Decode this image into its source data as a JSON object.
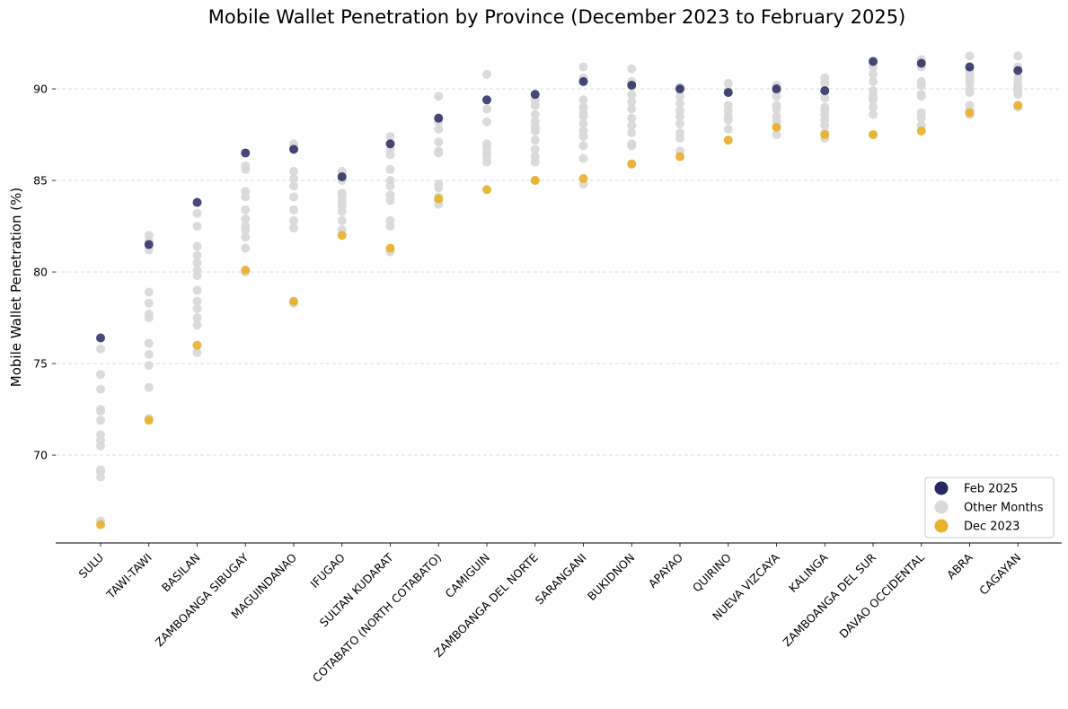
{
  "chart_data": {
    "type": "scatter",
    "title": "Mobile Wallet Penetration by Province (December 2023 to February 2025)",
    "xlabel": "",
    "ylabel": "Mobile Wallet Penetration (%)",
    "ylim": [
      65.2,
      92.6
    ],
    "yticks": [
      "70",
      "75",
      "80",
      "85",
      "90"
    ],
    "grid": "horizontal dashed",
    "legend_position": "lower right",
    "colors": {
      "feb_2025": "#26295f",
      "other_months": "#d9d9d9",
      "dec_2023": "#e9b22c"
    },
    "categories": [
      "SULU",
      "TAWI-TAWI",
      "BASILAN",
      "ZAMBOANGA SIBUGAY",
      "MAGUINDANAO",
      "IFUGAO",
      "SULTAN KUDARAT",
      "COTABATO (NORTH COTABATO)",
      "CAMIGUIN",
      "ZAMBOANGA DEL NORTE",
      "SARANGANI",
      "BUKIDNON",
      "APAYAO",
      "QUIRINO",
      "NUEVA VIZCAYA",
      "KALINGA",
      "ZAMBOANGA DEL SUR",
      "DAVAO OCCIDENTAL",
      "ABRA",
      "CAGAYAN"
    ],
    "series": [
      {
        "name": "Feb 2025",
        "values": [
          76.4,
          81.5,
          83.8,
          86.5,
          86.7,
          85.2,
          87.0,
          88.4,
          89.4,
          89.7,
          90.4,
          90.2,
          90.0,
          89.8,
          90.0,
          89.9,
          91.5,
          91.4,
          91.2,
          91.0
        ]
      },
      {
        "name": "Other Months",
        "values": [
          [
            75.8,
            74.4,
            73.6,
            72.5,
            72.4,
            71.9,
            71.1,
            70.8,
            70.5,
            69.2,
            69.1,
            68.8,
            66.4
          ],
          [
            82.0,
            81.7,
            81.2,
            78.9,
            78.3,
            77.7,
            77.5,
            76.1,
            75.5,
            74.9,
            73.7,
            72.0
          ],
          [
            83.2,
            82.5,
            81.4,
            80.9,
            80.5,
            80.1,
            79.8,
            79.0,
            78.4,
            78.0,
            77.5,
            77.1,
            75.6
          ],
          [
            85.8,
            85.6,
            84.4,
            84.1,
            83.4,
            82.9,
            82.5,
            82.3,
            81.9,
            81.3,
            80.0
          ],
          [
            87.0,
            86.8,
            85.5,
            85.1,
            84.7,
            84.1,
            83.4,
            82.8,
            82.4,
            78.3
          ],
          [
            85.5,
            85.0,
            84.3,
            84.1,
            83.8,
            83.6,
            83.3,
            82.8,
            82.3
          ],
          [
            87.4,
            86.7,
            86.4,
            85.6,
            85.0,
            84.7,
            84.2,
            83.9,
            82.8,
            82.5,
            81.1
          ],
          [
            89.6,
            88.2,
            87.8,
            87.1,
            86.6,
            86.5,
            84.8,
            84.6,
            84.1,
            83.9,
            83.7
          ],
          [
            90.8,
            88.9,
            88.2,
            87.0,
            86.8,
            86.5,
            86.3,
            86.0
          ],
          [
            89.4,
            89.1,
            88.6,
            88.2,
            87.9,
            87.7,
            87.2,
            86.7,
            86.3,
            86.0,
            85.0
          ],
          [
            91.2,
            90.6,
            89.4,
            89.0,
            88.7,
            88.5,
            88.1,
            87.7,
            87.4,
            86.9,
            86.2,
            84.8
          ],
          [
            91.1,
            90.4,
            89.7,
            89.3,
            88.9,
            88.4,
            88.0,
            87.6,
            87.0,
            86.9,
            85.9
          ],
          [
            90.1,
            89.6,
            89.2,
            88.8,
            88.5,
            88.1,
            87.6,
            87.3,
            86.6
          ],
          [
            90.3,
            89.9,
            89.1,
            88.8,
            88.5,
            88.3,
            87.8,
            87.2
          ],
          [
            90.2,
            89.9,
            89.6,
            89.1,
            88.9,
            88.5,
            88.2,
            87.9,
            87.5
          ],
          [
            90.6,
            90.3,
            89.5,
            89.0,
            88.8,
            88.6,
            88.3,
            88.0,
            87.6,
            87.3
          ],
          [
            91.2,
            90.8,
            90.4,
            89.9,
            89.6,
            89.4,
            89.0,
            88.6,
            87.5
          ],
          [
            91.6,
            91.2,
            90.4,
            90.2,
            89.7,
            89.6,
            88.7,
            88.4,
            88.0
          ],
          [
            91.8,
            91.0,
            90.8,
            90.5,
            90.3,
            90.0,
            89.8,
            89.1,
            88.8,
            88.6
          ],
          [
            91.8,
            91.2,
            90.6,
            90.3,
            90.1,
            89.9,
            89.7,
            89.0
          ]
        ]
      },
      {
        "name": "Dec 2023",
        "values": [
          66.2,
          71.9,
          76.0,
          80.1,
          78.4,
          82.0,
          81.3,
          84.0,
          84.5,
          85.0,
          85.1,
          85.9,
          86.3,
          87.2,
          87.9,
          87.5,
          87.5,
          87.7,
          88.7,
          89.1
        ]
      }
    ]
  },
  "legend": {
    "items": [
      {
        "label": "Feb 2025",
        "color": "#26295f"
      },
      {
        "label": "Other Months",
        "color": "#d9d9d9"
      },
      {
        "label": "Dec 2023",
        "color": "#e9b22c"
      }
    ]
  }
}
